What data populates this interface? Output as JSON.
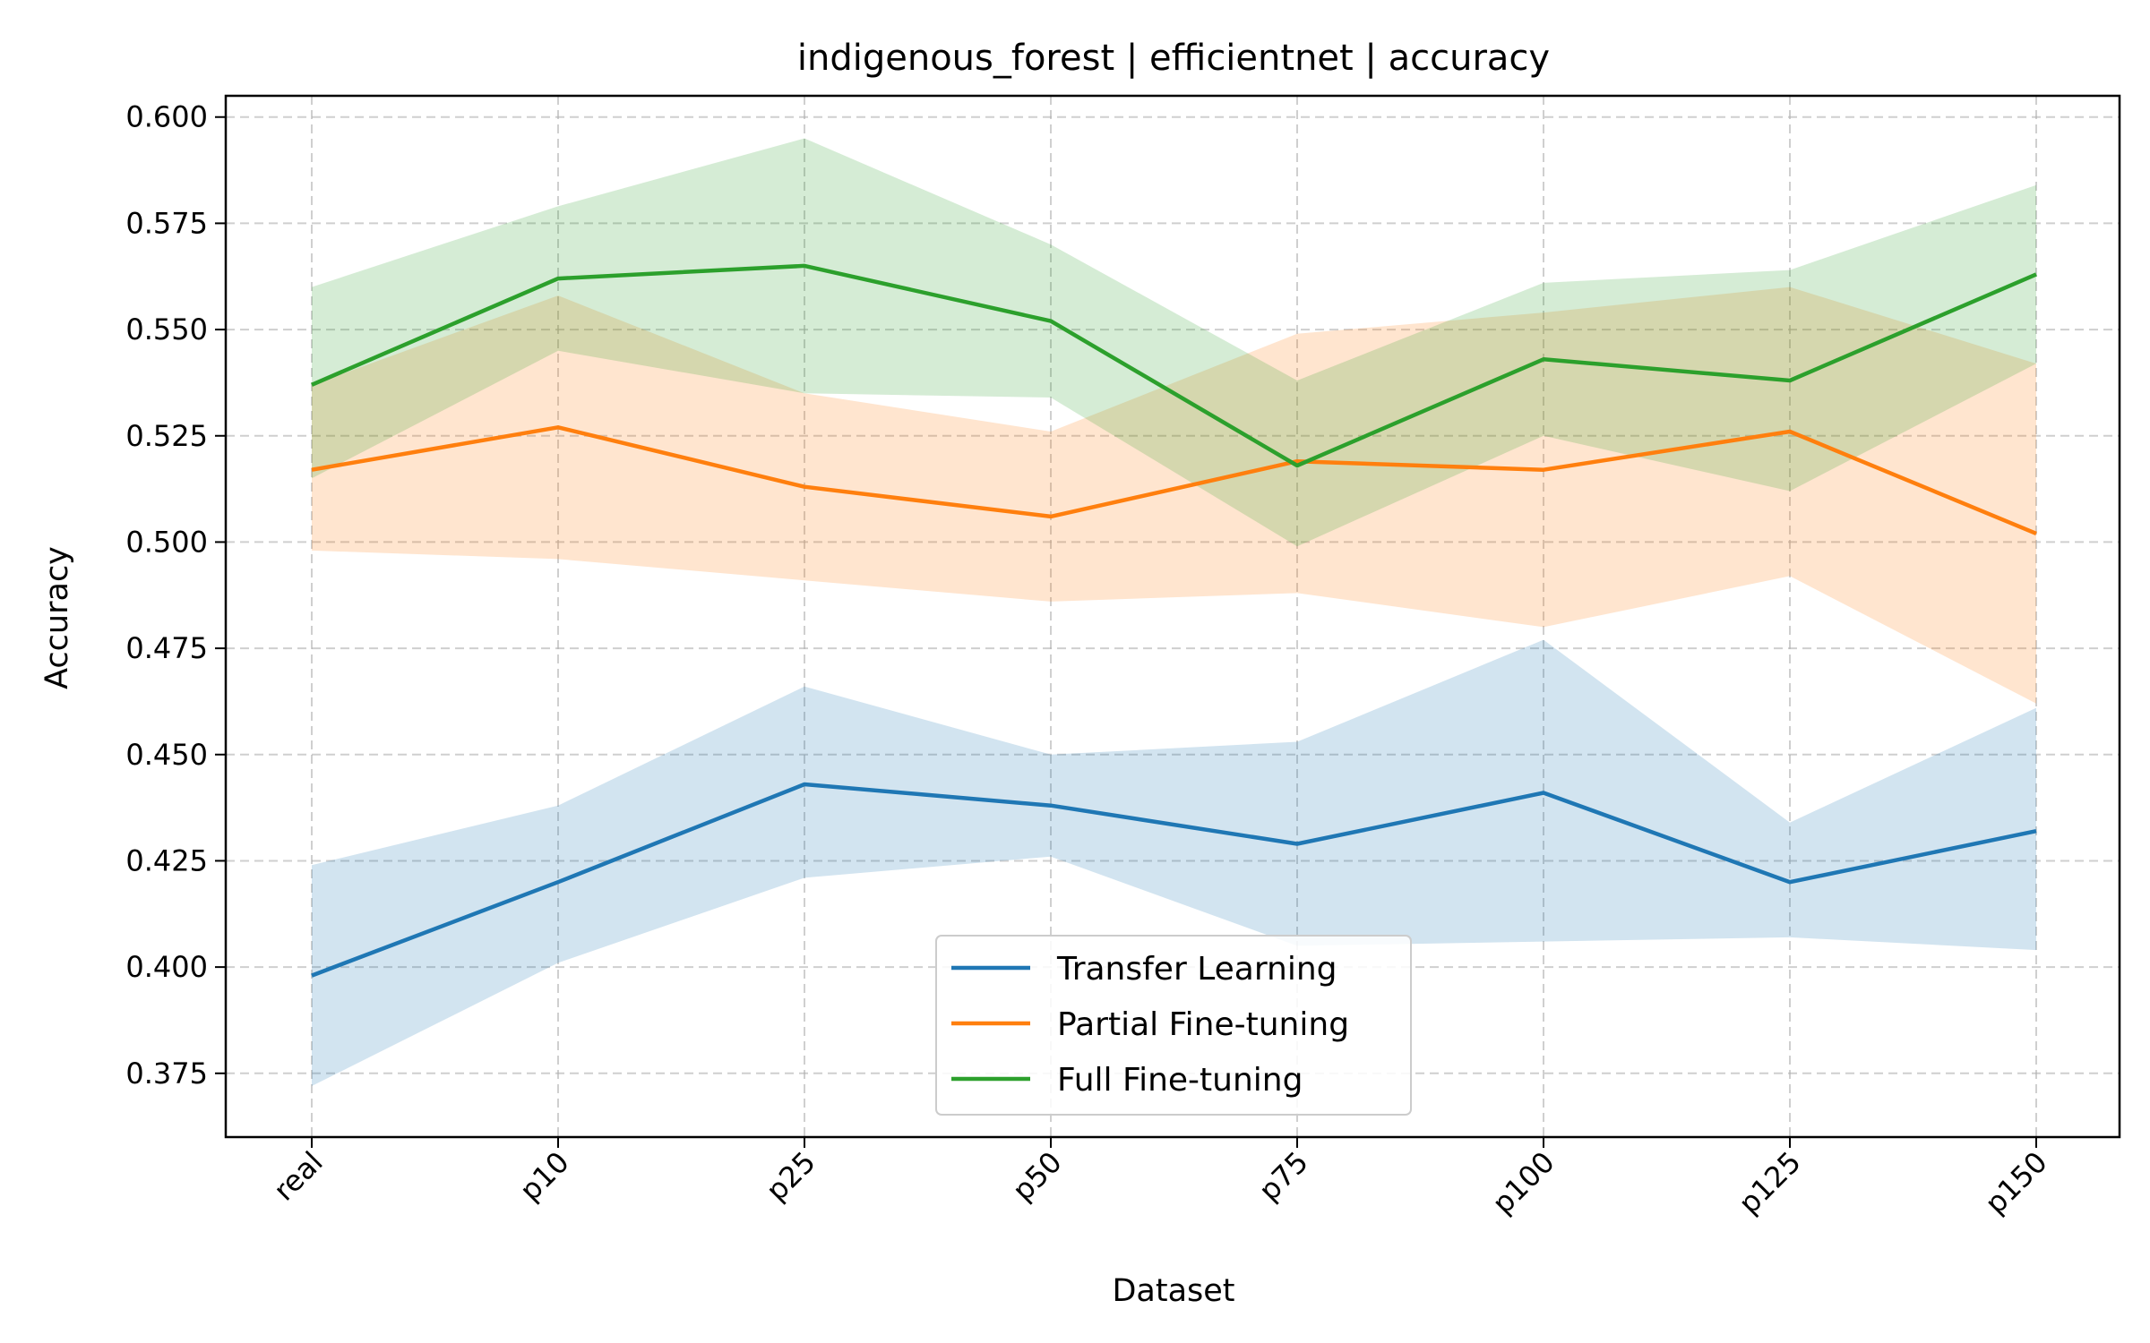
{
  "chart_data": {
    "type": "line",
    "title": "indigenous_forest | efficientnet | accuracy",
    "xlabel": "Dataset",
    "ylabel": "Accuracy",
    "categories": [
      "real",
      "p10",
      "p25",
      "p50",
      "p75",
      "p100",
      "p125",
      "p150"
    ],
    "ylim": [
      0.36,
      0.605
    ],
    "yticks": [
      "0.375",
      "0.400",
      "0.425",
      "0.450",
      "0.475",
      "0.500",
      "0.525",
      "0.550",
      "0.575",
      "0.600"
    ],
    "grid": true,
    "legend_position": "lower-center",
    "series": [
      {
        "name": "Transfer Learning",
        "color": "#1f77b4",
        "values": [
          0.398,
          0.42,
          0.443,
          0.438,
          0.429,
          0.441,
          0.42,
          0.432
        ],
        "lower": [
          0.372,
          0.401,
          0.421,
          0.426,
          0.405,
          0.406,
          0.407,
          0.404
        ],
        "upper": [
          0.424,
          0.438,
          0.466,
          0.45,
          0.453,
          0.477,
          0.434,
          0.461
        ]
      },
      {
        "name": "Partial Fine-tuning",
        "color": "#ff7f0e",
        "values": [
          0.517,
          0.527,
          0.513,
          0.506,
          0.519,
          0.517,
          0.526,
          0.502
        ],
        "lower": [
          0.498,
          0.496,
          0.491,
          0.486,
          0.488,
          0.48,
          0.492,
          0.462
        ],
        "upper": [
          0.537,
          0.558,
          0.535,
          0.526,
          0.549,
          0.554,
          0.56,
          0.542
        ]
      },
      {
        "name": "Full Fine-tuning",
        "color": "#2ca02c",
        "values": [
          0.537,
          0.562,
          0.565,
          0.552,
          0.518,
          0.543,
          0.538,
          0.563
        ],
        "lower": [
          0.515,
          0.545,
          0.535,
          0.534,
          0.499,
          0.525,
          0.512,
          0.542
        ],
        "upper": [
          0.56,
          0.579,
          0.595,
          0.57,
          0.538,
          0.561,
          0.564,
          0.584
        ]
      }
    ]
  }
}
